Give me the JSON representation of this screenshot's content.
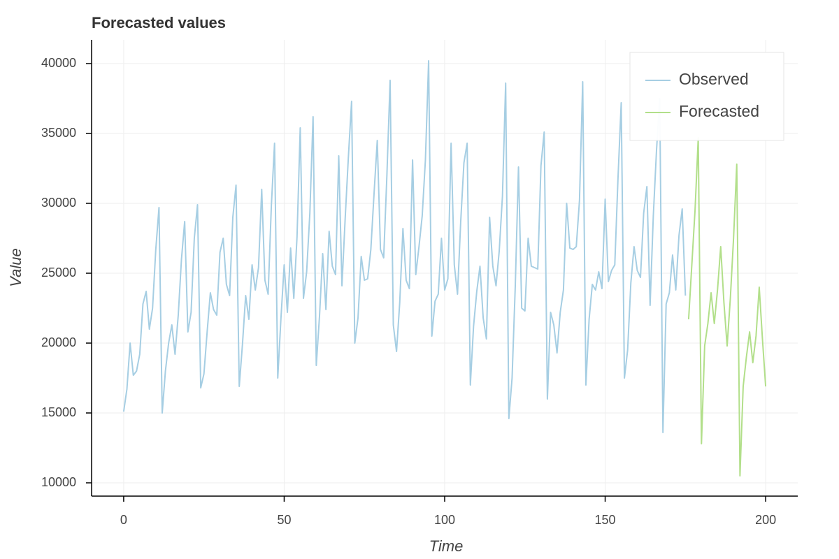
{
  "chart_data": {
    "type": "line",
    "title": "Forecasted values",
    "x_label": "Time",
    "y_label": "Value",
    "series": [
      {
        "name": "Observed",
        "color": "#a6cee3",
        "x": [
          0,
          1,
          2,
          3,
          4,
          5,
          6,
          7,
          8,
          9,
          10,
          11,
          12,
          13,
          14,
          15,
          16,
          17,
          18,
          19,
          20,
          21,
          22,
          23,
          24,
          25,
          26,
          27,
          28,
          29,
          30,
          31,
          32,
          33,
          34,
          35,
          36,
          37,
          38,
          39,
          40,
          41,
          42,
          43,
          44,
          45,
          46,
          47,
          48,
          49,
          50,
          51,
          52,
          53,
          54,
          55,
          56,
          57,
          58,
          59,
          60,
          61,
          62,
          63,
          64,
          65,
          66,
          67,
          68,
          69,
          70,
          71,
          72,
          73,
          74,
          75,
          76,
          77,
          78,
          79,
          80,
          81,
          82,
          83,
          84,
          85,
          86,
          87,
          88,
          89,
          90,
          91,
          92,
          93,
          94,
          95,
          96,
          97,
          98,
          99,
          100,
          101,
          102,
          103,
          104,
          105,
          106,
          107,
          108,
          109,
          110,
          111,
          112,
          113,
          114,
          115,
          116,
          117,
          118,
          119,
          120,
          121,
          122,
          123,
          124,
          125,
          126,
          127,
          128,
          129,
          130,
          131,
          132,
          133,
          134,
          135,
          136,
          137,
          138,
          139,
          140,
          141,
          142,
          143,
          144,
          145,
          146,
          147,
          148,
          149,
          150,
          151,
          152,
          153,
          154,
          155,
          156,
          157,
          158,
          159,
          160,
          161,
          162,
          163,
          164,
          165,
          166,
          167,
          168,
          169,
          170,
          171,
          172,
          173,
          174,
          175
        ],
        "values": [
          15100,
          16700,
          20000,
          17700,
          18000,
          19200,
          22800,
          23700,
          21000,
          22500,
          26700,
          29700,
          15000,
          18000,
          20000,
          21300,
          19200,
          22000,
          26000,
          28700,
          20800,
          22200,
          27500,
          29900,
          16800,
          17800,
          20800,
          23600,
          22400,
          22000,
          26500,
          27500,
          24200,
          23400,
          29000,
          31300,
          16900,
          19900,
          23400,
          21700,
          25600,
          23800,
          25400,
          31000,
          24500,
          23500,
          29800,
          34300,
          17500,
          21800,
          25600,
          22200,
          26800,
          23200,
          27600,
          35400,
          23200,
          25100,
          29300,
          36200,
          18400,
          21900,
          26400,
          22400,
          28000,
          25500,
          24900,
          33400,
          24100,
          28900,
          33300,
          37300,
          20000,
          21800,
          26200,
          24500,
          24600,
          26700,
          30700,
          34500,
          26700,
          26100,
          32000,
          38800,
          21300,
          19400,
          22900,
          28200,
          24500,
          23900,
          33100,
          24900,
          26900,
          29100,
          33100,
          40200,
          20500,
          23000,
          23500,
          27500,
          23800,
          24600,
          34300,
          25600,
          23500,
          28700,
          32900,
          34300,
          17000,
          21200,
          23700,
          25500,
          21800,
          20300,
          29000,
          25500,
          24100,
          26600,
          30500,
          38600,
          14600,
          17500,
          24100,
          32600,
          22500,
          22300,
          27500,
          25500,
          25400,
          25300,
          32700,
          35100,
          16000,
          22200,
          21300,
          19300,
          22200,
          23800,
          30000,
          26800,
          26700,
          26900,
          30200,
          38700,
          17000,
          21700,
          24200,
          23800,
          25100,
          23900,
          30300,
          24400,
          25200,
          25600,
          31800,
          37200,
          17500,
          19500,
          24300,
          26900,
          25200,
          24700,
          29300,
          31200,
          22700,
          29100,
          33800,
          37500,
          13600,
          22800,
          23600,
          26300,
          23800,
          27700,
          29600,
          23400
        ]
      },
      {
        "name": "Forecasted",
        "color": "#b2df8a",
        "x": [
          176,
          177,
          178,
          179,
          180,
          181,
          182,
          183,
          184,
          185,
          186,
          187,
          188,
          189,
          190,
          191,
          192,
          193,
          194,
          195,
          196,
          197,
          198,
          199,
          200
        ],
        "values": [
          21700,
          25600,
          29500,
          34700,
          12800,
          19800,
          21400,
          23600,
          21400,
          23800,
          26900,
          22900,
          19800,
          23200,
          27500,
          32800,
          10500,
          16900,
          19000,
          20800,
          18600,
          20500,
          24000,
          20300,
          16900
        ]
      }
    ],
    "xlim": [
      -10,
      210
    ],
    "ylim": [
      9050,
      41700
    ],
    "xticks": [
      0,
      50,
      100,
      150,
      200
    ],
    "yticks": [
      10000,
      15000,
      20000,
      25000,
      30000,
      35000,
      40000
    ],
    "grid": true,
    "legend": "top-right"
  }
}
